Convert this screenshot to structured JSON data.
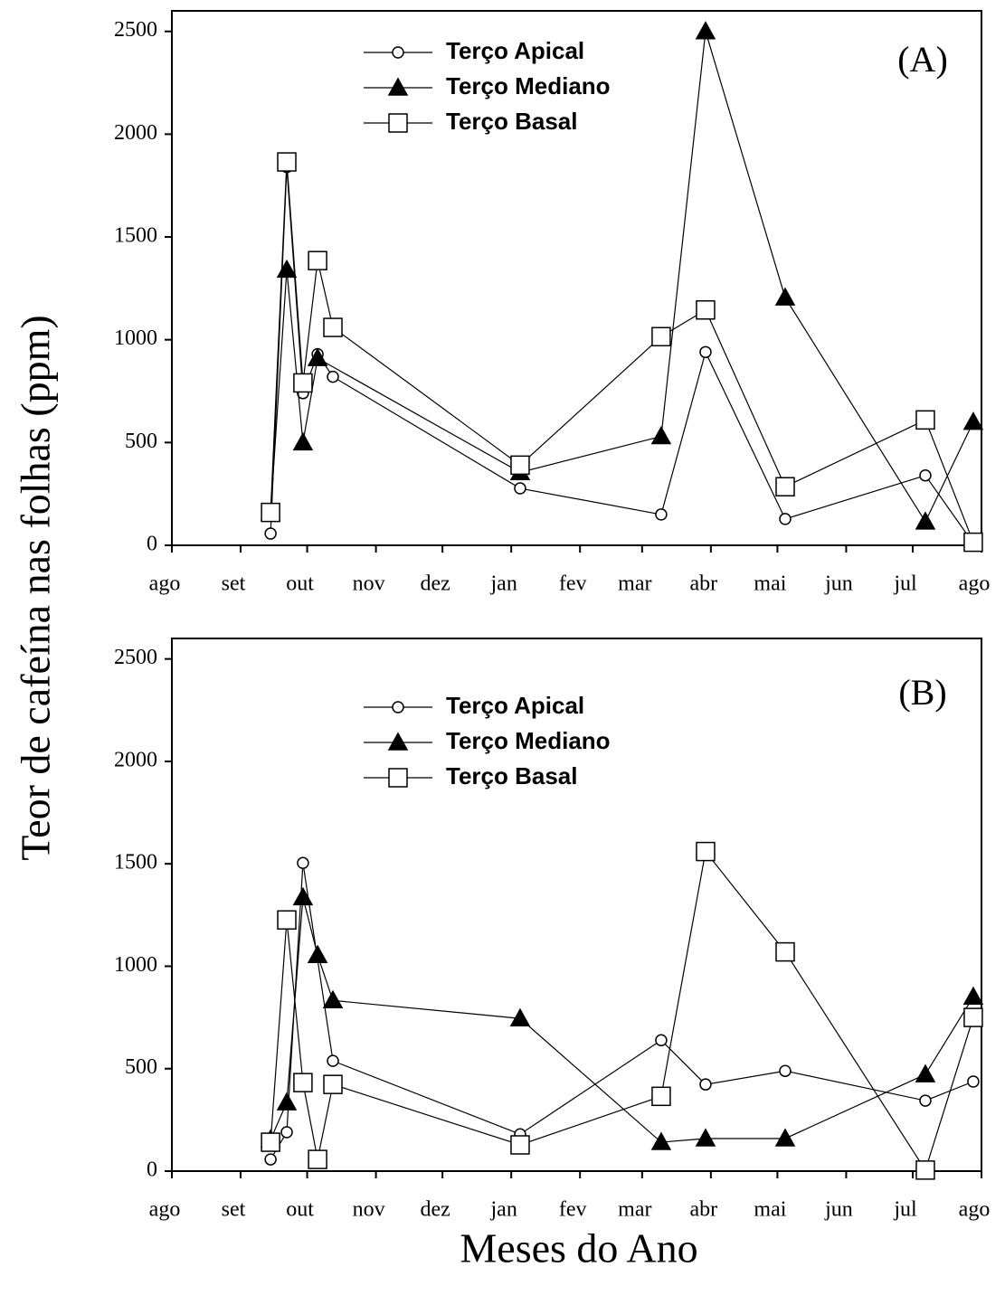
{
  "ylabel": "Teor de cafeína nas folhas (ppm)",
  "xlabel": "Meses do Ano",
  "chart_data": [
    {
      "type": "line",
      "title": "(A)",
      "xlim": [
        0,
        365
      ],
      "ylim": [
        0,
        2600
      ],
      "xticks": [
        {
          "value": 0,
          "label": "ago"
        },
        {
          "value": 31,
          "label": "set"
        },
        {
          "value": 61,
          "label": "out"
        },
        {
          "value": 92,
          "label": "nov"
        },
        {
          "value": 122,
          "label": "dez"
        },
        {
          "value": 153,
          "label": "jan"
        },
        {
          "value": 184,
          "label": "fev"
        },
        {
          "value": 212,
          "label": "mar"
        },
        {
          "value": 243,
          "label": "abr"
        },
        {
          "value": 273,
          "label": "mai"
        },
        {
          "value": 304,
          "label": "jun"
        },
        {
          "value": 334,
          "label": "jul"
        },
        {
          "value": 365,
          "label": "ago"
        }
      ],
      "yticks": [
        0,
        500,
        1000,
        1500,
        2000,
        2500
      ],
      "series": [
        {
          "name": "Terço Apical",
          "color": "#000000",
          "marker": "circle",
          "marker_fill": "#ffffff",
          "x": [
            44.5,
            51.8,
            59.1,
            65.7,
            72.6,
            157,
            220.6,
            240.6,
            276.5,
            339.7,
            361.3
          ],
          "values": [
            57,
            1840,
            740,
            930,
            820,
            277,
            150,
            940,
            128,
            340,
            10
          ]
        },
        {
          "name": "Terço Mediano",
          "color": "#000000",
          "marker": "triangle",
          "marker_fill": "#000000",
          "x": [
            44.5,
            51.8,
            59.1,
            65.7,
            157,
            220.6,
            240.6,
            276.5,
            339.7,
            361.3
          ],
          "values": [
            160,
            1340,
            500,
            910,
            355,
            530,
            2500,
            1205,
            115,
            600
          ]
        },
        {
          "name": "Terço Basal",
          "color": "#000000",
          "marker": "square",
          "marker_fill": "#ffffff",
          "x": [
            44.5,
            51.8,
            59.1,
            65.7,
            72.6,
            157,
            220.6,
            240.6,
            276.5,
            339.7,
            361.3
          ],
          "values": [
            160,
            1865,
            790,
            1385,
            1060,
            390,
            1015,
            1145,
            285,
            610,
            15
          ]
        }
      ]
    },
    {
      "type": "line",
      "title": "(B)",
      "xlim": [
        0,
        365
      ],
      "ylim": [
        0,
        2600
      ],
      "xticks": [
        {
          "value": 0,
          "label": "ago"
        },
        {
          "value": 31,
          "label": "set"
        },
        {
          "value": 61,
          "label": "out"
        },
        {
          "value": 92,
          "label": "nov"
        },
        {
          "value": 122,
          "label": "dez"
        },
        {
          "value": 153,
          "label": "jan"
        },
        {
          "value": 184,
          "label": "fev"
        },
        {
          "value": 212,
          "label": "mar"
        },
        {
          "value": 243,
          "label": "abr"
        },
        {
          "value": 273,
          "label": "mai"
        },
        {
          "value": 304,
          "label": "jun"
        },
        {
          "value": 334,
          "label": "jul"
        },
        {
          "value": 365,
          "label": "ago"
        }
      ],
      "yticks": [
        0,
        500,
        1000,
        1500,
        2000,
        2500
      ],
      "series": [
        {
          "name": "Terço Apical",
          "color": "#000000",
          "marker": "circle",
          "marker_fill": "#ffffff",
          "x": [
            44.5,
            51.8,
            59.1,
            72.6,
            157,
            220.6,
            240.6,
            276.5,
            339.7,
            361.3
          ],
          "values": [
            57,
            190,
            1504,
            538,
            180,
            639,
            423,
            489,
            344,
            437
          ]
        },
        {
          "name": "Terço Mediano",
          "color": "#000000",
          "marker": "triangle",
          "marker_fill": "#000000",
          "x": [
            44.5,
            51.8,
            59.1,
            65.7,
            72.6,
            157,
            220.6,
            240.6,
            276.5,
            339.7,
            361.3
          ],
          "values": [
            154,
            335,
            1336,
            1054,
            833,
            745,
            141,
            159,
            159,
            472,
            851
          ]
        },
        {
          "name": "Terço Basal",
          "color": "#000000",
          "marker": "square",
          "marker_fill": "#ffffff",
          "x": [
            44.5,
            51.8,
            59.1,
            65.7,
            72.6,
            157,
            220.6,
            240.6,
            276.5,
            339.7,
            361.3
          ],
          "values": [
            141,
            1226,
            432,
            57,
            423,
            128,
            365,
            1560,
            1070,
            5,
            750
          ]
        }
      ]
    }
  ]
}
